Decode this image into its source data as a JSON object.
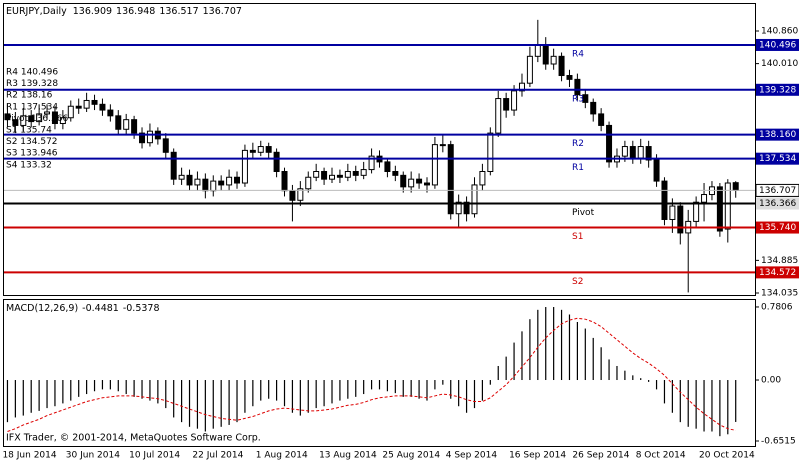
{
  "chart_data": [
    {
      "type": "candlestick",
      "title": "EURJPY,Daily",
      "categories": [
        "18 Jun 2014",
        null,
        null,
        null,
        null,
        null,
        null,
        null,
        "30 Jun 2014",
        null,
        null,
        null,
        null,
        null,
        null,
        null,
        "10 Jul 2014",
        null,
        null,
        null,
        null,
        null,
        null,
        null,
        "22 Jul 2014",
        null,
        null,
        null,
        null,
        null,
        null,
        null,
        "1 Aug 2014",
        null,
        null,
        null,
        null,
        null,
        null,
        null,
        "13 Aug 2014",
        null,
        null,
        null,
        null,
        null,
        null,
        null,
        "25 Aug 2014",
        null,
        null,
        null,
        null,
        null,
        null,
        null,
        "4 Sep 2014",
        null,
        null,
        null,
        null,
        null,
        null,
        null,
        "16 Sep 2014",
        null,
        null,
        null,
        null,
        null,
        null,
        null,
        "26 Sep 2014",
        null,
        null,
        null,
        null,
        null,
        null,
        null,
        "8 Oct 2014",
        null,
        null,
        null,
        null,
        null,
        null,
        null,
        "20 Oct 2014",
        null,
        null,
        null,
        null
      ],
      "open": [
        138.7,
        138.55,
        138.4,
        138.65,
        138.5,
        138.7,
        138.75,
        138.45,
        138.6,
        138.9,
        138.85,
        139.05,
        138.95,
        138.8,
        138.65,
        138.3,
        138.55,
        138.2,
        137.95,
        138.25,
        138.05,
        137.7,
        137.0,
        137.1,
        136.85,
        137.0,
        136.7,
        136.95,
        136.85,
        137.05,
        136.9,
        137.75,
        137.7,
        137.85,
        137.7,
        137.2,
        136.7,
        136.45,
        136.75,
        137.05,
        137.2,
        137.0,
        137.1,
        137.05,
        137.2,
        137.1,
        137.25,
        137.6,
        137.45,
        137.2,
        137.1,
        136.8,
        137.0,
        136.9,
        136.85,
        137.9,
        137.9,
        136.1,
        136.4,
        136.1,
        136.85,
        137.2,
        138.2,
        139.1,
        138.8,
        139.3,
        139.5,
        140.2,
        140.5,
        140.0,
        140.2,
        139.7,
        139.6,
        139.2,
        139.0,
        138.7,
        138.4,
        137.45,
        137.6,
        137.85,
        137.55,
        137.85,
        137.5,
        136.95,
        135.95,
        136.3,
        135.6,
        135.9,
        136.4,
        136.6,
        136.8,
        135.7,
        136.909
      ],
      "high": [
        138.95,
        138.75,
        138.85,
        138.8,
        138.95,
        138.95,
        138.9,
        138.8,
        139.05,
        139.1,
        139.25,
        139.2,
        139.1,
        138.95,
        138.8,
        138.7,
        138.65,
        138.35,
        138.45,
        138.35,
        138.2,
        137.8,
        137.3,
        137.25,
        137.2,
        137.15,
        137.1,
        137.1,
        137.25,
        137.2,
        137.9,
        137.95,
        138.0,
        137.95,
        137.8,
        137.3,
        136.85,
        136.95,
        137.2,
        137.4,
        137.3,
        137.3,
        137.25,
        137.4,
        137.35,
        137.45,
        137.8,
        137.75,
        137.55,
        137.35,
        137.2,
        137.2,
        137.15,
        137.05,
        138.1,
        138.15,
        138.0,
        136.6,
        136.55,
        137.05,
        137.4,
        138.35,
        139.3,
        139.25,
        139.45,
        139.75,
        140.45,
        141.15,
        140.7,
        140.4,
        140.3,
        139.85,
        139.75,
        139.35,
        139.1,
        138.85,
        138.5,
        137.8,
        138.0,
        138.0,
        138.05,
        138.0,
        137.65,
        137.05,
        136.5,
        136.4,
        136.2,
        136.55,
        136.9,
        136.95,
        136.9,
        137.0,
        136.948
      ],
      "low": [
        138.35,
        138.2,
        138.25,
        138.35,
        138.4,
        138.55,
        138.3,
        138.3,
        138.5,
        138.7,
        138.75,
        138.8,
        138.65,
        138.5,
        138.15,
        138.15,
        138.05,
        137.8,
        137.85,
        137.9,
        137.55,
        136.85,
        136.85,
        136.7,
        136.7,
        136.5,
        136.55,
        136.7,
        136.7,
        136.75,
        136.8,
        137.55,
        137.6,
        137.55,
        137.05,
        136.55,
        135.9,
        136.3,
        136.65,
        136.95,
        136.85,
        136.9,
        136.9,
        136.95,
        136.95,
        137.0,
        137.15,
        137.3,
        137.05,
        136.95,
        136.65,
        136.65,
        136.75,
        136.65,
        136.75,
        137.7,
        135.95,
        135.75,
        135.9,
        136.0,
        136.7,
        137.1,
        138.1,
        138.6,
        138.65,
        139.15,
        139.4,
        140.05,
        139.85,
        139.85,
        139.55,
        139.4,
        139.05,
        138.85,
        138.5,
        138.25,
        137.3,
        137.3,
        137.45,
        137.4,
        137.4,
        137.3,
        136.8,
        135.8,
        135.6,
        135.3,
        134.05,
        135.75,
        135.9,
        136.45,
        135.5,
        135.35,
        136.517
      ],
      "close": [
        138.55,
        138.4,
        138.65,
        138.5,
        138.7,
        138.75,
        138.45,
        138.6,
        138.9,
        138.85,
        139.05,
        138.95,
        138.8,
        138.65,
        138.3,
        138.55,
        138.2,
        137.95,
        138.25,
        138.05,
        137.7,
        137.0,
        137.1,
        136.85,
        137.0,
        136.7,
        136.95,
        136.85,
        137.05,
        136.9,
        137.75,
        137.7,
        137.85,
        137.7,
        137.2,
        136.7,
        136.45,
        136.75,
        137.05,
        137.2,
        137.0,
        137.1,
        137.05,
        137.2,
        137.1,
        137.25,
        137.6,
        137.45,
        137.2,
        137.1,
        136.8,
        137.0,
        136.9,
        136.85,
        137.9,
        137.9,
        136.1,
        136.4,
        136.1,
        136.85,
        137.2,
        138.2,
        139.1,
        138.8,
        139.3,
        139.5,
        140.2,
        140.5,
        140.0,
        140.2,
        139.7,
        139.6,
        139.2,
        139.0,
        138.7,
        138.4,
        137.45,
        137.6,
        137.85,
        137.55,
        137.85,
        137.5,
        136.95,
        135.95,
        136.3,
        135.6,
        135.9,
        136.4,
        136.6,
        136.8,
        135.65,
        136.9,
        136.707
      ],
      "up_color": "#ffffff",
      "down_color": "#000000",
      "ylim": [
        133.983,
        141.589
      ],
      "yticks": [
        {
          "value": 140.86,
          "label": "140.860"
        },
        {
          "value": 140.01,
          "label": "140.010"
        },
        134.885,
        134.035
      ],
      "levels": [
        {
          "name": "R4",
          "value": 140.496,
          "color": "#0000a0"
        },
        {
          "name": "R3",
          "value": 139.328,
          "color": "#0000a0"
        },
        {
          "name": "R2",
          "value": 138.16,
          "label": "138.160",
          "color": "#0000a0"
        },
        {
          "name": "R1",
          "value": 137.534,
          "color": "#0000a0"
        },
        {
          "name": "Pivot",
          "value": 136.366,
          "color": "#000000"
        },
        {
          "name": "S1",
          "value": 135.74,
          "label": "135.740",
          "color": "#cc0000"
        },
        {
          "name": "S2",
          "value": 134.572,
          "color": "#cc0000"
        }
      ],
      "level_list": [
        "R4 140.496",
        "R3 139.328",
        "R2 138.16",
        "R1 137.534",
        "Pivot 136.366",
        "S1 135.74",
        "S2 134.572",
        "S3 133.946",
        "S4 133.32"
      ]
    },
    {
      "type": "macd",
      "title": "MACD(12,26,9)",
      "histogram": {
        "color": "#000000",
        "values": [
          -0.45,
          -0.4,
          -0.38,
          -0.35,
          -0.33,
          -0.3,
          -0.28,
          -0.25,
          -0.22,
          -0.18,
          -0.15,
          -0.12,
          -0.1,
          -0.1,
          -0.12,
          -0.15,
          -0.18,
          -0.2,
          -0.22,
          -0.25,
          -0.3,
          -0.4,
          -0.45,
          -0.5,
          -0.52,
          -0.55,
          -0.52,
          -0.5,
          -0.48,
          -0.45,
          -0.35,
          -0.28,
          -0.22,
          -0.2,
          -0.22,
          -0.28,
          -0.35,
          -0.38,
          -0.35,
          -0.3,
          -0.28,
          -0.25,
          -0.22,
          -0.2,
          -0.18,
          -0.15,
          -0.1,
          -0.1,
          -0.12,
          -0.14,
          -0.18,
          -0.18,
          -0.2,
          -0.22,
          -0.1,
          -0.05,
          -0.2,
          -0.28,
          -0.35,
          -0.3,
          -0.22,
          -0.05,
          0.15,
          0.25,
          0.4,
          0.52,
          0.65,
          0.75,
          0.78,
          0.78,
          0.75,
          0.7,
          0.62,
          0.55,
          0.45,
          0.35,
          0.22,
          0.15,
          0.1,
          0.05,
          0.02,
          -0.02,
          -0.1,
          -0.25,
          -0.35,
          -0.45,
          -0.5,
          -0.52,
          -0.55,
          -0.55,
          -0.6,
          -0.58,
          -0.4481
        ]
      },
      "signal": {
        "color": "#dd0000",
        "values": [
          -0.55,
          -0.52,
          -0.48,
          -0.45,
          -0.42,
          -0.38,
          -0.35,
          -0.32,
          -0.29,
          -0.26,
          -0.23,
          -0.21,
          -0.19,
          -0.18,
          -0.17,
          -0.17,
          -0.17,
          -0.18,
          -0.19,
          -0.2,
          -0.22,
          -0.25,
          -0.28,
          -0.31,
          -0.34,
          -0.37,
          -0.39,
          -0.41,
          -0.42,
          -0.43,
          -0.41,
          -0.39,
          -0.36,
          -0.33,
          -0.31,
          -0.3,
          -0.31,
          -0.32,
          -0.33,
          -0.33,
          -0.32,
          -0.31,
          -0.29,
          -0.27,
          -0.26,
          -0.24,
          -0.21,
          -0.19,
          -0.18,
          -0.17,
          -0.17,
          -0.17,
          -0.18,
          -0.19,
          -0.17,
          -0.15,
          -0.16,
          -0.18,
          -0.21,
          -0.23,
          -0.23,
          -0.19,
          -0.12,
          -0.05,
          0.04,
          0.14,
          0.24,
          0.35,
          0.45,
          0.53,
          0.6,
          0.64,
          0.66,
          0.65,
          0.62,
          0.57,
          0.5,
          0.43,
          0.36,
          0.29,
          0.23,
          0.18,
          0.12,
          0.05,
          -0.04,
          -0.13,
          -0.21,
          -0.29,
          -0.36,
          -0.42,
          -0.48,
          -0.52,
          -0.5378
        ]
      },
      "ylim": [
        -0.705,
        0.855
      ],
      "yticks": [
        0.7806,
        {
          "value": 0,
          "label": "0.00"
        },
        -0.6515
      ]
    }
  ],
  "footer": "IFX Trader, © 2001-2014, MetaQuotes Software Corp."
}
